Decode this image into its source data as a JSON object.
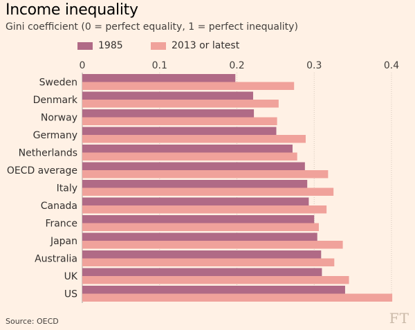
{
  "chart_data": {
    "type": "bar",
    "orientation": "horizontal",
    "title": "Income inequality",
    "subtitle": "Gini coefficient (0 = perfect equality, 1 = perfect inequality)",
    "categories": [
      "Sweden",
      "Denmark",
      "Norway",
      "Germany",
      "Netherlands",
      "OECD average",
      "Italy",
      "Canada",
      "France",
      "Japan",
      "Australia",
      "UK",
      "US"
    ],
    "series": [
      {
        "name": "1985",
        "color": "#b06a86",
        "values": [
          0.198,
          0.221,
          0.222,
          0.251,
          0.272,
          0.288,
          0.291,
          0.293,
          0.3,
          0.304,
          0.309,
          0.31,
          0.34
        ]
      },
      {
        "name": "2013 or latest",
        "color": "#f0a29b",
        "values": [
          0.274,
          0.254,
          0.252,
          0.289,
          0.278,
          0.318,
          0.325,
          0.316,
          0.306,
          0.337,
          0.326,
          0.345,
          0.401
        ]
      }
    ],
    "x_ticks": [
      "0",
      "0.1",
      "0.2",
      "0.3",
      "0.4"
    ],
    "xlim": [
      0,
      0.4
    ],
    "legend_position": "top",
    "grid": true
  },
  "source": "Source: OECD",
  "logo": "FT"
}
